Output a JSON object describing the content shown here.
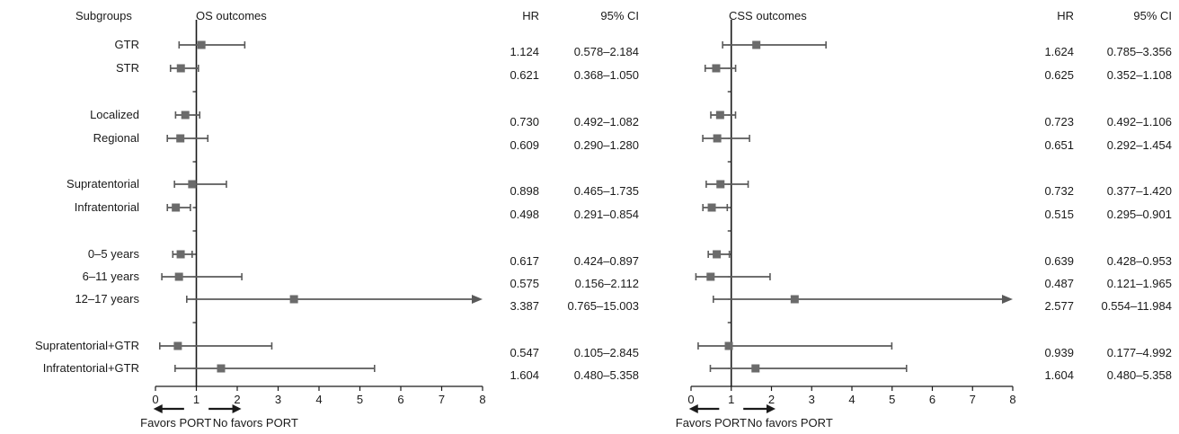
{
  "chart_data": {
    "type": "forest",
    "headers": {
      "subgroups": "Subgroups",
      "hr": "HR",
      "ci": "95% CI"
    },
    "subgroups": [
      "GTR",
      "STR",
      "Localized",
      "Regional",
      "Supratentorial",
      "Infratentorial",
      "0–5 years",
      "6–11 years",
      "12–17 years",
      "Supratentorial+GTR",
      "Infratentorial+GTR"
    ],
    "x_ticks": [
      0,
      1,
      2,
      3,
      4,
      5,
      6,
      7,
      8
    ],
    "xlim": [
      0,
      8
    ],
    "reference_line": 1,
    "arrows": {
      "left_label": "Favors PORT",
      "right_label": "No favors PORT"
    },
    "panels": [
      {
        "title": "OS outcomes",
        "rows": [
          {
            "hr": 1.124,
            "lo": 0.578,
            "hi": 2.184,
            "hr_text": "1.124",
            "ci_text": "0.578–2.184"
          },
          {
            "hr": 0.621,
            "lo": 0.368,
            "hi": 1.05,
            "hr_text": "0.621",
            "ci_text": "0.368–1.050"
          },
          {
            "hr": 0.73,
            "lo": 0.492,
            "hi": 1.082,
            "hr_text": "0.730",
            "ci_text": "0.492–1.082"
          },
          {
            "hr": 0.609,
            "lo": 0.29,
            "hi": 1.28,
            "hr_text": "0.609",
            "ci_text": "0.290–1.280"
          },
          {
            "hr": 0.898,
            "lo": 0.465,
            "hi": 1.735,
            "hr_text": "0.898",
            "ci_text": "0.465–1.735"
          },
          {
            "hr": 0.498,
            "lo": 0.291,
            "hi": 0.854,
            "hr_text": "0.498",
            "ci_text": "0.291–0.854"
          },
          {
            "hr": 0.617,
            "lo": 0.424,
            "hi": 0.897,
            "hr_text": "0.617",
            "ci_text": "0.424–0.897"
          },
          {
            "hr": 0.575,
            "lo": 0.156,
            "hi": 2.112,
            "hr_text": "0.575",
            "ci_text": "0.156–2.112"
          },
          {
            "hr": 3.387,
            "lo": 0.765,
            "hi": 15.003,
            "hr_text": "3.387",
            "ci_text": "0.765–15.003"
          },
          {
            "hr": 0.547,
            "lo": 0.105,
            "hi": 2.845,
            "hr_text": "0.547",
            "ci_text": "0.105–2.845"
          },
          {
            "hr": 1.604,
            "lo": 0.48,
            "hi": 5.358,
            "hr_text": "1.604",
            "ci_text": "0.480–5.358"
          }
        ]
      },
      {
        "title": "CSS outcomes",
        "rows": [
          {
            "hr": 1.624,
            "lo": 0.785,
            "hi": 3.356,
            "hr_text": "1.624",
            "ci_text": "0.785–3.356"
          },
          {
            "hr": 0.625,
            "lo": 0.352,
            "hi": 1.108,
            "hr_text": "0.625",
            "ci_text": "0.352–1.108"
          },
          {
            "hr": 0.723,
            "lo": 0.492,
            "hi": 1.106,
            "hr_text": "0.723",
            "ci_text": "0.492–1.106"
          },
          {
            "hr": 0.651,
            "lo": 0.292,
            "hi": 1.454,
            "hr_text": "0.651",
            "ci_text": "0.292–1.454"
          },
          {
            "hr": 0.732,
            "lo": 0.377,
            "hi": 1.42,
            "hr_text": "0.732",
            "ci_text": "0.377–1.420"
          },
          {
            "hr": 0.515,
            "lo": 0.295,
            "hi": 0.901,
            "hr_text": "0.515",
            "ci_text": "0.295–0.901"
          },
          {
            "hr": 0.639,
            "lo": 0.428,
            "hi": 0.953,
            "hr_text": "0.639",
            "ci_text": "0.428–0.953"
          },
          {
            "hr": 0.487,
            "lo": 0.121,
            "hi": 1.965,
            "hr_text": "0.487",
            "ci_text": "0.121–1.965"
          },
          {
            "hr": 2.577,
            "lo": 0.554,
            "hi": 11.984,
            "hr_text": "2.577",
            "ci_text": "0.554–11.984"
          },
          {
            "hr": 0.939,
            "lo": 0.177,
            "hi": 4.992,
            "hr_text": "0.939",
            "ci_text": "0.177–4.992"
          },
          {
            "hr": 1.604,
            "lo": 0.48,
            "hi": 5.358,
            "hr_text": "1.604",
            "ci_text": "0.480–5.358"
          }
        ]
      }
    ],
    "colors": {
      "marker": "#6b6b6b",
      "line": "#5a5a5a",
      "axis": "#1a1a1a"
    }
  }
}
